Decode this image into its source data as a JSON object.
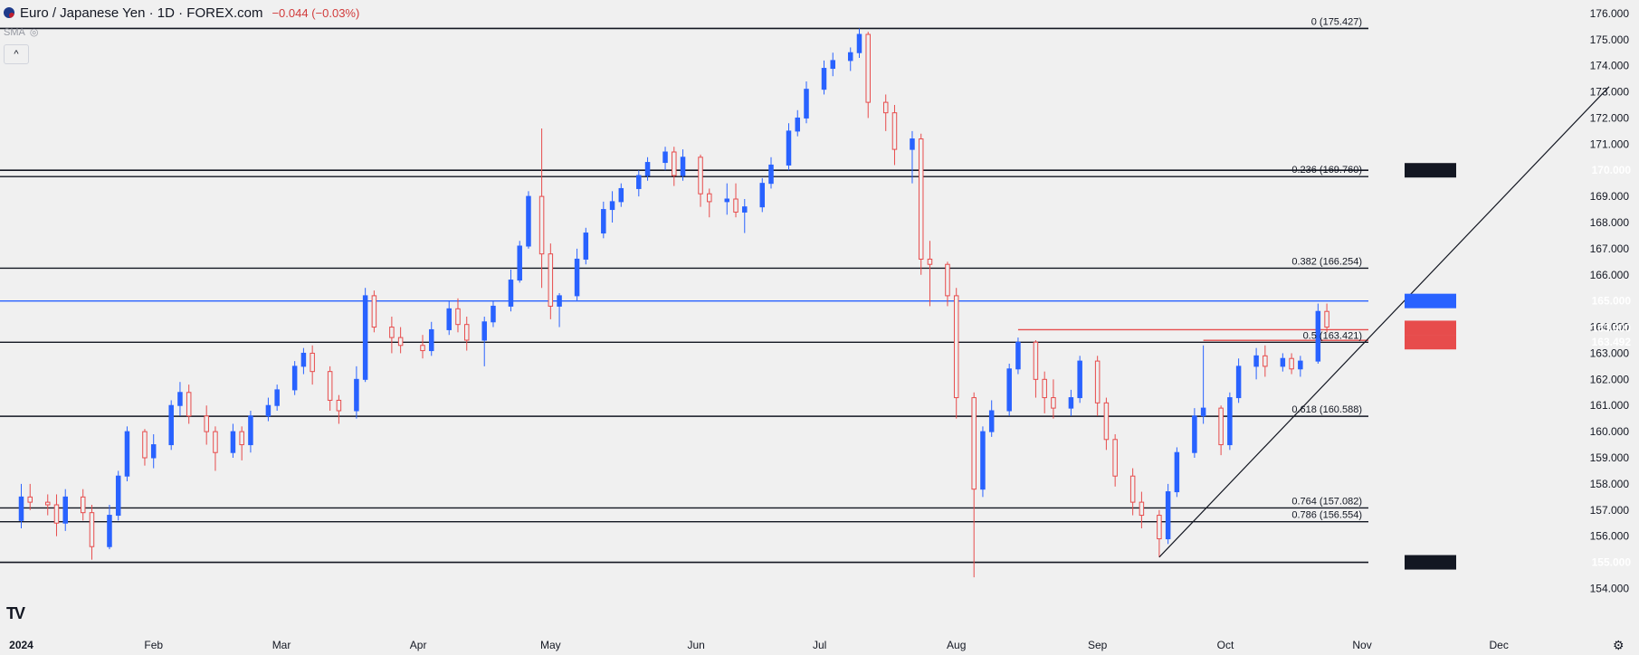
{
  "header": {
    "symbol": "Euro / Japanese Yen · 1D · FOREX.com",
    "change": "−0.044 (−0.03%)",
    "indicator": "SMA"
  },
  "icons": [
    "flag-icon",
    "eye-icon",
    "chevron-up-icon",
    "tradingview-logo",
    "gear-icon"
  ],
  "colors": {
    "up": "#2962ff",
    "down": "#e74c4c",
    "background": "#f0f0f0",
    "axis_text": "#131722"
  },
  "chart_data": {
    "type": "candlestick",
    "interval": "1D",
    "ylim": [
      153.6,
      176.1
    ],
    "y_ticks": [
      154,
      155,
      156,
      157,
      158,
      159,
      160,
      161,
      162,
      163,
      164,
      165,
      166,
      167,
      168,
      169,
      170,
      171,
      172,
      173,
      174,
      175,
      176
    ],
    "y_tick_labels": [
      "154.000",
      "155.000",
      "156.000",
      "157.000",
      "158.000",
      "159.000",
      "160.000",
      "161.000",
      "162.000",
      "163.000",
      "164.000",
      "165.000",
      "166.000",
      "167.000",
      "168.000",
      "169.000",
      "170.000",
      "171.000",
      "172.000",
      "173.000",
      "174.000",
      "175.000",
      "176.000"
    ],
    "x_labels": [
      {
        "label": "2024",
        "date": "2024-01-02"
      },
      {
        "label": "Feb",
        "date": "2024-02-01"
      },
      {
        "label": "Mar",
        "date": "2024-03-01"
      },
      {
        "label": "Apr",
        "date": "2024-04-01"
      },
      {
        "label": "May",
        "date": "2024-05-01"
      },
      {
        "label": "Jun",
        "date": "2024-06-03"
      },
      {
        "label": "Jul",
        "date": "2024-07-01"
      },
      {
        "label": "Aug",
        "date": "2024-08-01"
      },
      {
        "label": "Sep",
        "date": "2024-09-02"
      },
      {
        "label": "Oct",
        "date": "2024-10-01"
      },
      {
        "label": "Nov",
        "date": "2024-11-01"
      },
      {
        "label": "Dec",
        "date": "2024-12-02"
      }
    ],
    "x_range": [
      "2023-12-29",
      "2024-12-27"
    ],
    "candles": [
      [
        "2024-01-02",
        156.6,
        158.0,
        156.3,
        157.5
      ],
      [
        "2024-01-04",
        157.5,
        158.0,
        157.0,
        157.3
      ],
      [
        "2024-01-08",
        157.3,
        157.6,
        156.8,
        157.2
      ],
      [
        "2024-01-10",
        157.2,
        157.6,
        156.0,
        156.5
      ],
      [
        "2024-01-12",
        156.5,
        157.8,
        156.2,
        157.5
      ],
      [
        "2024-01-16",
        157.5,
        157.8,
        156.6,
        156.9
      ],
      [
        "2024-01-18",
        156.9,
        157.2,
        155.1,
        155.6
      ],
      [
        "2024-01-22",
        155.6,
        157.2,
        155.5,
        156.8
      ],
      [
        "2024-01-24",
        156.8,
        158.5,
        156.6,
        158.3
      ],
      [
        "2024-01-26",
        158.3,
        160.2,
        158.1,
        160.0
      ],
      [
        "2024-01-30",
        160.0,
        160.1,
        158.7,
        159.0
      ],
      [
        "2024-02-01",
        159.0,
        159.9,
        158.6,
        159.5
      ],
      [
        "2024-02-05",
        159.5,
        161.2,
        159.3,
        161.0
      ],
      [
        "2024-02-07",
        161.0,
        161.9,
        160.6,
        161.5
      ],
      [
        "2024-02-09",
        161.5,
        161.8,
        160.3,
        160.6
      ],
      [
        "2024-02-13",
        160.6,
        161.0,
        159.5,
        160.0
      ],
      [
        "2024-02-15",
        160.0,
        160.2,
        158.5,
        159.2
      ],
      [
        "2024-02-19",
        159.2,
        160.3,
        159.0,
        160.0
      ],
      [
        "2024-02-21",
        160.0,
        160.2,
        158.9,
        159.5
      ],
      [
        "2024-02-23",
        159.5,
        160.8,
        159.2,
        160.6
      ],
      [
        "2024-02-27",
        160.6,
        161.3,
        160.4,
        161.0
      ],
      [
        "2024-02-29",
        161.0,
        161.8,
        160.8,
        161.6
      ],
      [
        "2024-03-04",
        161.6,
        162.7,
        161.4,
        162.5
      ],
      [
        "2024-03-06",
        162.5,
        163.2,
        162.2,
        163.0
      ],
      [
        "2024-03-08",
        163.0,
        163.3,
        161.8,
        162.3
      ],
      [
        "2024-03-12",
        162.3,
        162.5,
        160.8,
        161.2
      ],
      [
        "2024-03-14",
        161.2,
        161.4,
        160.3,
        160.8
      ],
      [
        "2024-03-18",
        160.8,
        162.5,
        160.5,
        162.0
      ],
      [
        "2024-03-20",
        162.0,
        165.5,
        161.9,
        165.2
      ],
      [
        "2024-03-22",
        165.2,
        165.4,
        163.8,
        164.0
      ],
      [
        "2024-03-26",
        164.0,
        164.4,
        163.0,
        163.6
      ],
      [
        "2024-03-28",
        163.6,
        164.0,
        163.0,
        163.3
      ],
      [
        "2024-04-02",
        163.3,
        163.7,
        162.8,
        163.1
      ],
      [
        "2024-04-04",
        163.1,
        164.2,
        162.9,
        163.9
      ],
      [
        "2024-04-08",
        163.9,
        165.0,
        163.7,
        164.7
      ],
      [
        "2024-04-10",
        164.7,
        165.1,
        163.8,
        164.1
      ],
      [
        "2024-04-12",
        164.1,
        164.4,
        163.1,
        163.5
      ],
      [
        "2024-04-16",
        163.5,
        164.4,
        162.5,
        164.2
      ],
      [
        "2024-04-18",
        164.2,
        165.0,
        164.0,
        164.8
      ],
      [
        "2024-04-22",
        164.8,
        166.2,
        164.6,
        165.8
      ],
      [
        "2024-04-24",
        165.8,
        167.3,
        165.7,
        167.1
      ],
      [
        "2024-04-26",
        167.1,
        169.2,
        167.0,
        169.0
      ],
      [
        "2024-04-29",
        169.0,
        171.6,
        165.5,
        166.8
      ],
      [
        "2024-05-01",
        166.8,
        167.2,
        164.3,
        164.8
      ],
      [
        "2024-05-03",
        164.8,
        165.3,
        164.0,
        165.2
      ],
      [
        "2024-05-07",
        165.2,
        167.0,
        165.0,
        166.6
      ],
      [
        "2024-05-09",
        166.6,
        167.8,
        166.4,
        167.6
      ],
      [
        "2024-05-13",
        167.6,
        168.8,
        167.4,
        168.5
      ],
      [
        "2024-05-15",
        168.5,
        169.2,
        168.0,
        168.8
      ],
      [
        "2024-05-17",
        168.8,
        169.5,
        168.6,
        169.3
      ],
      [
        "2024-05-21",
        169.3,
        170.0,
        169.0,
        169.8
      ],
      [
        "2024-05-23",
        169.8,
        170.5,
        169.6,
        170.3
      ],
      [
        "2024-05-27",
        170.3,
        170.9,
        170.0,
        170.7
      ],
      [
        "2024-05-29",
        170.7,
        170.9,
        169.4,
        169.8
      ],
      [
        "2024-05-31",
        169.8,
        170.8,
        169.6,
        170.5
      ],
      [
        "2024-06-04",
        170.5,
        170.6,
        168.6,
        169.1
      ],
      [
        "2024-06-06",
        169.1,
        169.3,
        168.2,
        168.8
      ],
      [
        "2024-06-10",
        168.8,
        169.5,
        168.3,
        168.9
      ],
      [
        "2024-06-12",
        168.9,
        169.5,
        168.2,
        168.4
      ],
      [
        "2024-06-14",
        168.4,
        168.9,
        167.6,
        168.6
      ],
      [
        "2024-06-18",
        168.6,
        169.7,
        168.4,
        169.5
      ],
      [
        "2024-06-20",
        169.5,
        170.5,
        169.3,
        170.2
      ],
      [
        "2024-06-24",
        170.2,
        171.8,
        170.0,
        171.5
      ],
      [
        "2024-06-26",
        171.5,
        172.3,
        171.3,
        172.0
      ],
      [
        "2024-06-28",
        172.0,
        173.4,
        171.8,
        173.1
      ],
      [
        "2024-07-02",
        173.1,
        174.2,
        172.9,
        173.9
      ],
      [
        "2024-07-04",
        173.9,
        174.5,
        173.6,
        174.2
      ],
      [
        "2024-07-08",
        174.2,
        174.7,
        173.8,
        174.5
      ],
      [
        "2024-07-10",
        174.5,
        175.427,
        174.3,
        175.2
      ],
      [
        "2024-07-12",
        175.2,
        175.3,
        172.0,
        172.6
      ],
      [
        "2024-07-16",
        172.6,
        172.9,
        171.5,
        172.2
      ],
      [
        "2024-07-18",
        172.2,
        172.5,
        170.2,
        170.8
      ],
      [
        "2024-07-22",
        170.8,
        171.5,
        169.5,
        171.2
      ],
      [
        "2024-07-24",
        171.2,
        171.4,
        166.0,
        166.6
      ],
      [
        "2024-07-26",
        166.6,
        167.3,
        164.8,
        166.4
      ],
      [
        "2024-07-30",
        166.4,
        166.5,
        164.8,
        165.2
      ],
      [
        "2024-08-01",
        165.2,
        165.5,
        160.5,
        161.3
      ],
      [
        "2024-08-05",
        161.3,
        161.5,
        154.427,
        157.8
      ],
      [
        "2024-08-07",
        157.8,
        160.2,
        157.5,
        160.0
      ],
      [
        "2024-08-09",
        160.0,
        161.2,
        159.8,
        160.8
      ],
      [
        "2024-08-13",
        160.8,
        162.6,
        160.6,
        162.4
      ],
      [
        "2024-08-15",
        162.4,
        163.6,
        162.2,
        163.421
      ],
      [
        "2024-08-19",
        163.421,
        163.5,
        161.3,
        162.0
      ],
      [
        "2024-08-21",
        162.0,
        162.3,
        160.7,
        161.3
      ],
      [
        "2024-08-23",
        161.3,
        162.0,
        160.5,
        160.9
      ],
      [
        "2024-08-27",
        160.9,
        161.6,
        160.6,
        161.3
      ],
      [
        "2024-08-29",
        161.3,
        162.9,
        161.1,
        162.7
      ],
      [
        "2024-09-02",
        162.7,
        162.9,
        160.6,
        161.1
      ],
      [
        "2024-09-04",
        161.1,
        161.3,
        159.3,
        159.7
      ],
      [
        "2024-09-06",
        159.7,
        159.9,
        157.9,
        158.3
      ],
      [
        "2024-09-10",
        158.3,
        158.6,
        156.8,
        157.3
      ],
      [
        "2024-09-12",
        157.3,
        157.7,
        156.3,
        156.8
      ],
      [
        "2024-09-16",
        156.8,
        157.0,
        155.2,
        155.9
      ],
      [
        "2024-09-18",
        155.9,
        158.0,
        155.7,
        157.7
      ],
      [
        "2024-09-20",
        157.7,
        159.4,
        157.5,
        159.2
      ],
      [
        "2024-09-24",
        159.2,
        160.9,
        159.0,
        160.6
      ],
      [
        "2024-09-26",
        160.6,
        163.3,
        160.3,
        160.9
      ],
      [
        "2024-09-30",
        160.9,
        161.0,
        159.1,
        159.5
      ],
      [
        "2024-10-02",
        159.5,
        161.5,
        159.3,
        161.3
      ],
      [
        "2024-10-04",
        161.3,
        162.8,
        161.1,
        162.5
      ],
      [
        "2024-10-08",
        162.5,
        163.2,
        162.0,
        162.9
      ],
      [
        "2024-10-10",
        162.9,
        163.3,
        162.1,
        162.5
      ],
      [
        "2024-10-14",
        162.5,
        163.0,
        162.3,
        162.8
      ],
      [
        "2024-10-16",
        162.8,
        163.0,
        162.2,
        162.4
      ],
      [
        "2024-10-18",
        162.4,
        162.9,
        162.1,
        162.7
      ],
      [
        "2024-10-22",
        162.7,
        164.9,
        162.6,
        164.6
      ],
      [
        "2024-10-24",
        164.6,
        164.9,
        163.8,
        164.0
      ]
    ],
    "horizontal_levels": [
      {
        "price": 170.0,
        "label": "170.000",
        "highlight": "dark"
      },
      {
        "price": 169.76,
        "label": ""
      },
      {
        "price": 166.254,
        "label": ""
      },
      {
        "price": 165.0,
        "label": "165.000",
        "highlight": "blue"
      },
      {
        "price": 163.421,
        "label": ""
      },
      {
        "price": 160.588,
        "label": ""
      },
      {
        "price": 157.082,
        "label": ""
      },
      {
        "price": 156.554,
        "label": ""
      },
      {
        "price": 155.0,
        "label": "155.000",
        "highlight": "dark"
      },
      {
        "price": 175.427,
        "label": ""
      }
    ],
    "fib_labels": [
      {
        "price": 175.427,
        "text": "0 (175.427)"
      },
      {
        "price": 169.76,
        "text": "0.236 (169.760)"
      },
      {
        "price": 166.254,
        "text": "0.382 (166.254)"
      },
      {
        "price": 163.421,
        "text": "0.5 (163.421)"
      },
      {
        "price": 160.588,
        "text": "0.618 (160.588)"
      },
      {
        "price": 157.082,
        "text": "0.764 (157.082)"
      },
      {
        "price": 156.554,
        "text": "0.786 (156.554)"
      }
    ],
    "red_levels": [
      {
        "price": 163.9,
        "from": "2024-08-15",
        "label": "163.900"
      },
      {
        "price": 163.492,
        "from": "2024-09-26",
        "label": "163.492"
      }
    ],
    "trendline": {
      "from": [
        "2024-09-16",
        155.2
      ],
      "to": [
        "2024-12-27",
        173.2
      ]
    }
  }
}
